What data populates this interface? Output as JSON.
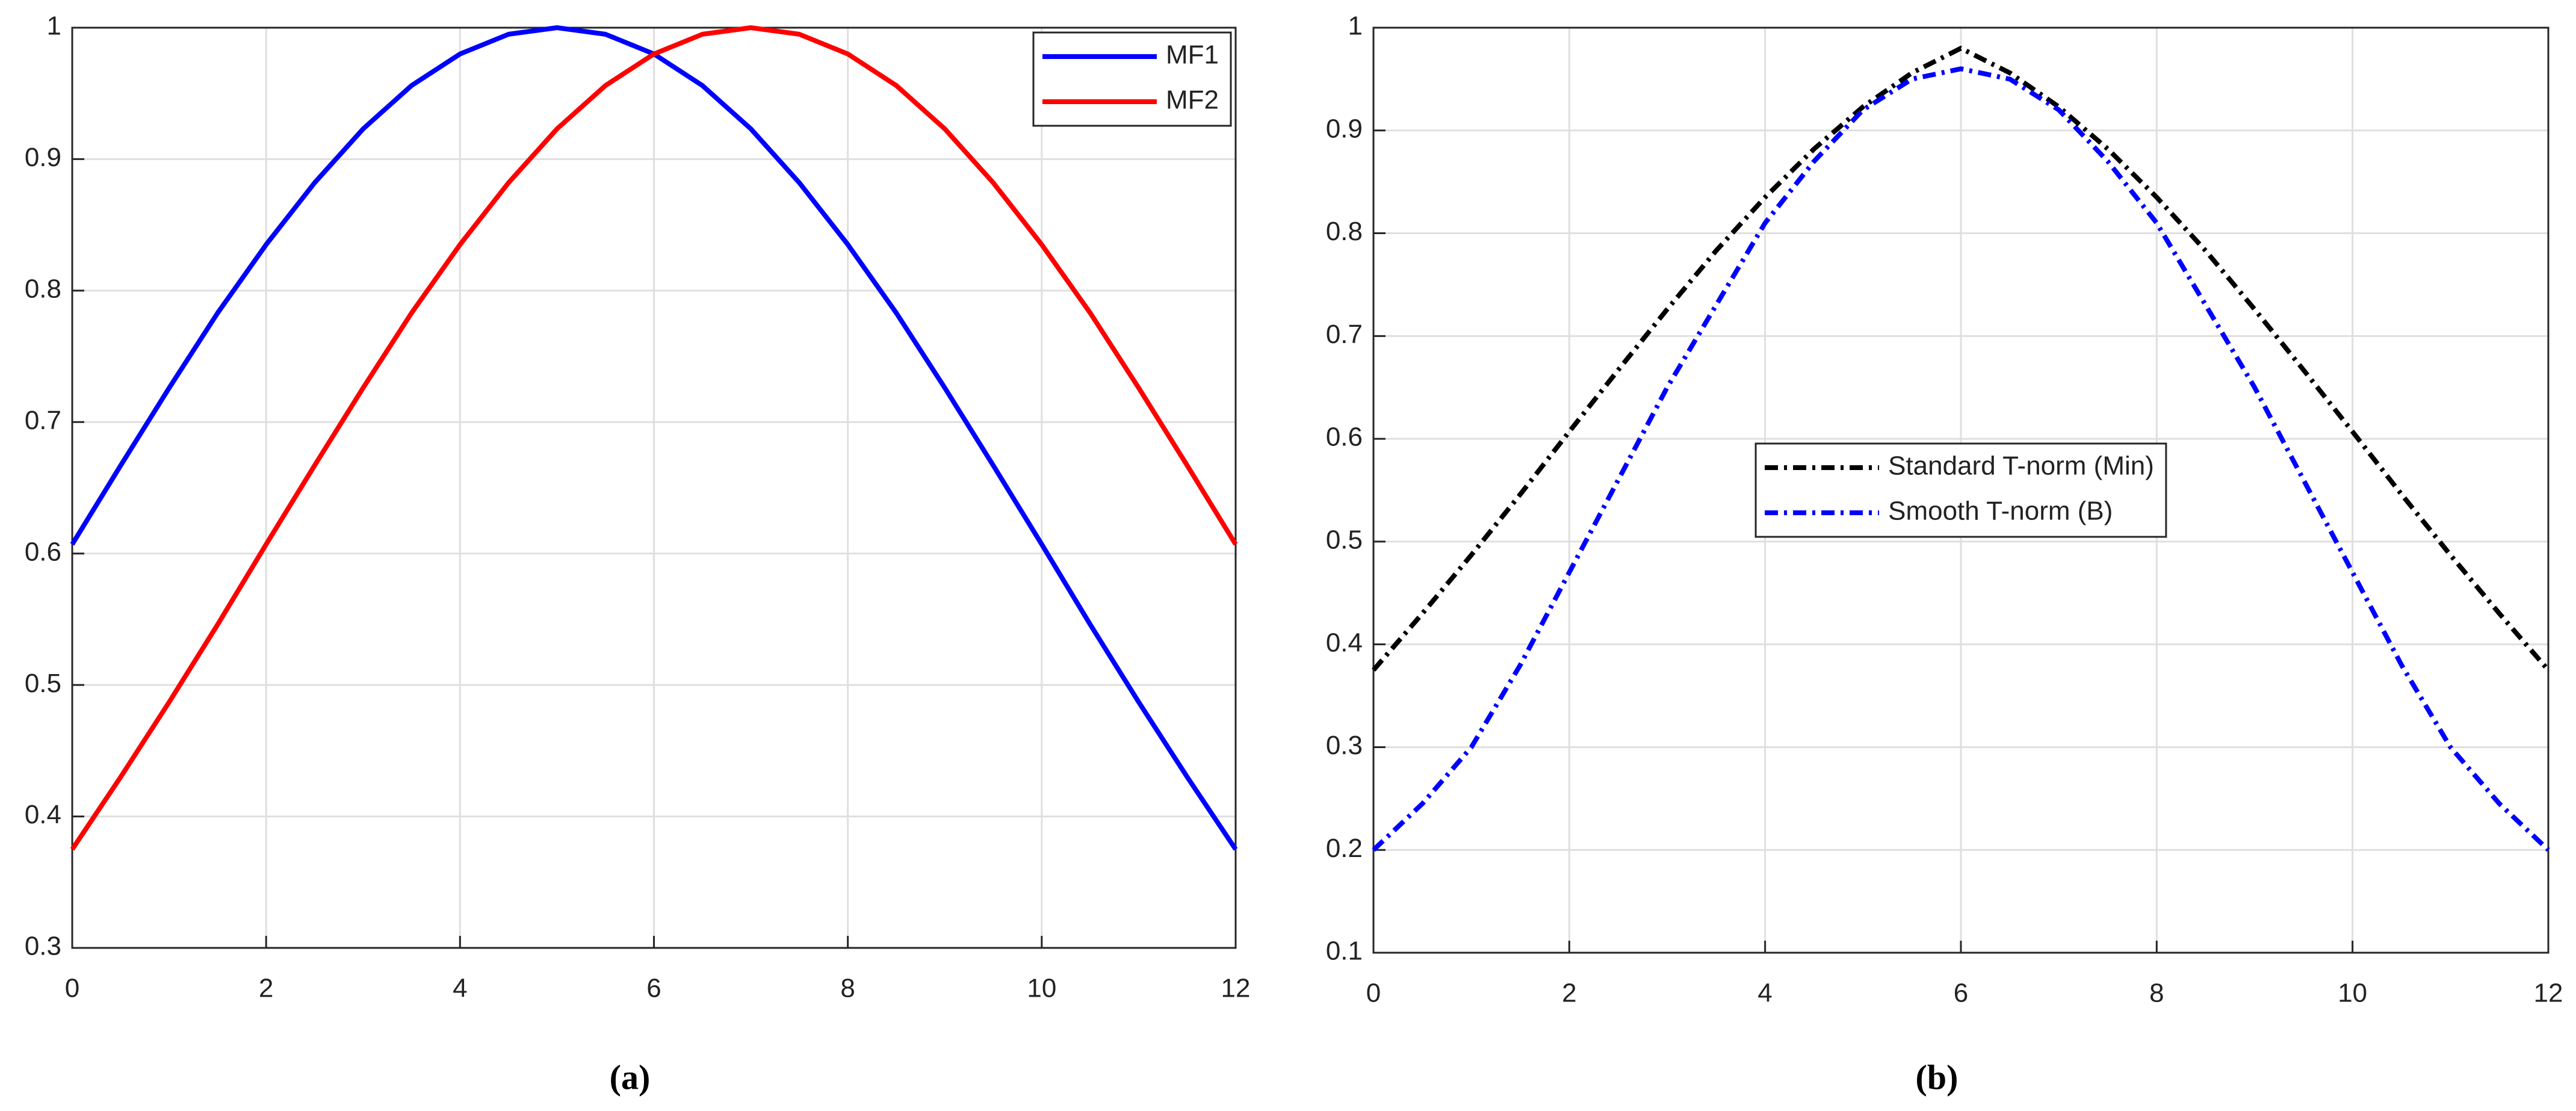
{
  "chart_data": [
    {
      "type": "line",
      "caption": "(a)",
      "x": [
        0,
        0.5,
        1,
        1.5,
        2,
        2.5,
        3,
        3.5,
        4,
        4.5,
        5,
        5.5,
        6,
        6.5,
        7,
        7.5,
        8,
        8.5,
        9,
        9.5,
        10,
        10.5,
        11,
        11.5,
        12
      ],
      "series": [
        {
          "name": "MF1",
          "color": "#0000ff",
          "values": [
            0.607,
            0.667,
            0.726,
            0.783,
            0.835,
            0.882,
            0.923,
            0.956,
            0.98,
            0.995,
            1,
            0.995,
            0.98,
            0.956,
            0.923,
            0.882,
            0.835,
            0.783,
            0.726,
            0.667,
            0.607,
            0.546,
            0.487,
            0.43,
            0.375
          ]
        },
        {
          "name": "MF2",
          "color": "#ff0000",
          "values": [
            0.375,
            0.43,
            0.487,
            0.546,
            0.607,
            0.667,
            0.726,
            0.783,
            0.835,
            0.882,
            0.923,
            0.956,
            0.98,
            0.995,
            1,
            0.995,
            0.98,
            0.956,
            0.923,
            0.882,
            0.835,
            0.783,
            0.726,
            0.667,
            0.607
          ]
        }
      ],
      "xlim": [
        0,
        12
      ],
      "ylim": [
        0.3,
        1
      ],
      "xticks": [
        0,
        2,
        4,
        6,
        8,
        10,
        12
      ],
      "yticks": [
        0.3,
        0.4,
        0.5,
        0.6,
        0.7,
        0.8,
        0.9,
        1
      ],
      "grid": true,
      "legend": "upper right"
    },
    {
      "type": "line",
      "caption": "(b)",
      "x": [
        0,
        0.5,
        1,
        1.5,
        2,
        2.5,
        3,
        3.5,
        4,
        4.5,
        5,
        5.5,
        6,
        6.5,
        7,
        7.5,
        8,
        8.5,
        9,
        9.5,
        10,
        10.5,
        11,
        11.5,
        12
      ],
      "series": [
        {
          "name": "Standard T-norm (Min)",
          "color": "#000000",
          "linestyle": "dash-dot",
          "values": [
            0.375,
            0.43,
            0.487,
            0.546,
            0.607,
            0.667,
            0.726,
            0.783,
            0.835,
            0.882,
            0.923,
            0.956,
            0.98,
            0.956,
            0.923,
            0.882,
            0.835,
            0.783,
            0.726,
            0.667,
            0.607,
            0.546,
            0.487,
            0.43,
            0.375
          ]
        },
        {
          "name": "Smooth T-norm (B)",
          "color": "#0000ff",
          "linestyle": "dash-dot",
          "values": [
            0.2,
            0.245,
            0.3,
            0.38,
            0.47,
            0.56,
            0.65,
            0.73,
            0.81,
            0.87,
            0.92,
            0.95,
            0.96,
            0.95,
            0.92,
            0.87,
            0.81,
            0.73,
            0.65,
            0.56,
            0.47,
            0.38,
            0.3,
            0.245,
            0.2
          ]
        }
      ],
      "xlim": [
        0,
        12
      ],
      "ylim": [
        0.1,
        1
      ],
      "xticks": [
        0,
        2,
        4,
        6,
        8,
        10,
        12
      ],
      "yticks": [
        0.1,
        0.2,
        0.3,
        0.4,
        0.5,
        0.6,
        0.7,
        0.8,
        0.9,
        1
      ],
      "grid": true,
      "legend": "center"
    }
  ]
}
